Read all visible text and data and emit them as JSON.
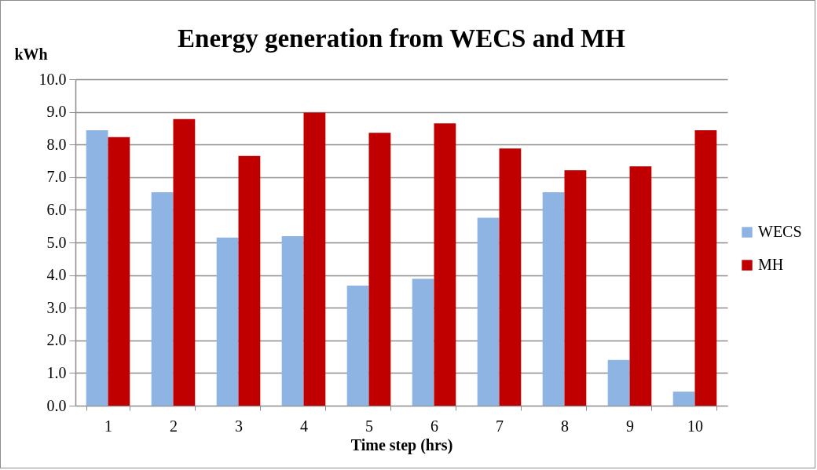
{
  "chart_data": {
    "type": "bar",
    "title": "Energy generation from WECS and MH",
    "xlabel": "Time step (hrs)",
    "ylabel": "kWh",
    "categories": [
      "1",
      "2",
      "3",
      "4",
      "5",
      "6",
      "7",
      "8",
      "9",
      "10"
    ],
    "series": [
      {
        "name": "WECS",
        "color": "#8eb4e3",
        "values": [
          8.44,
          6.54,
          5.15,
          5.19,
          3.68,
          3.89,
          5.76,
          6.54,
          1.4,
          0.43
        ]
      },
      {
        "name": "MH",
        "color": "#c00000",
        "values": [
          8.23,
          8.78,
          7.65,
          8.98,
          8.36,
          8.65,
          7.88,
          7.21,
          7.33,
          8.44
        ]
      }
    ],
    "ylim": [
      0,
      10
    ],
    "yticks": [
      {
        "value": 0,
        "label": "0.0"
      },
      {
        "value": 1,
        "label": "1.0"
      },
      {
        "value": 2,
        "label": "2.0"
      },
      {
        "value": 3,
        "label": "3.0"
      },
      {
        "value": 4,
        "label": "4.0"
      },
      {
        "value": 5,
        "label": "5.0"
      },
      {
        "value": 6,
        "label": "6.0"
      },
      {
        "value": 7,
        "label": "7.0"
      },
      {
        "value": 8,
        "label": "8.0"
      },
      {
        "value": 9,
        "label": "9.0"
      },
      {
        "value": 10,
        "label": "10.0"
      }
    ],
    "grid": "y",
    "legend": "right"
  }
}
